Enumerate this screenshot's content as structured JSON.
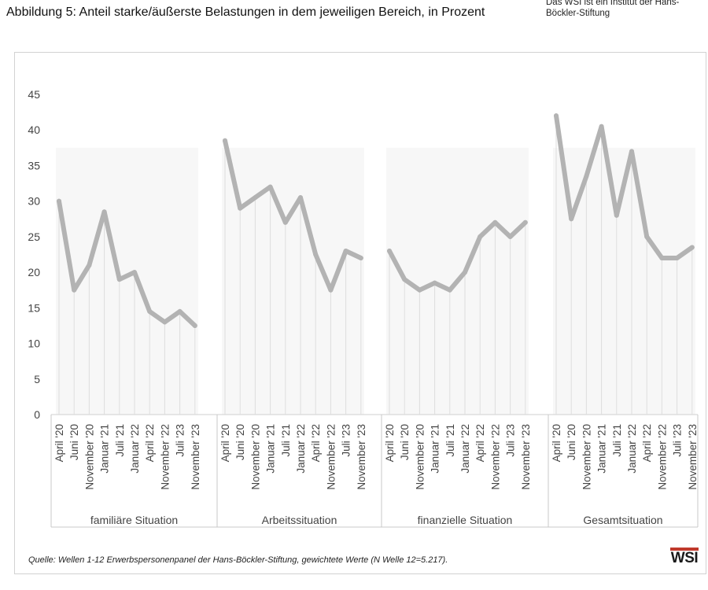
{
  "title": "Abbildung 5: Anteil starke/äußerste Belastungen in dem jeweiligen Bereich, in Prozent",
  "org_note": "Das WSI ist ein Institut der Hans-Böckler-Stiftung",
  "source": "Quelle: Wellen 1-12 Erwerbspersonenpanel der Hans-Böckler-Stiftung, gewichtete Werte (N Welle 12=5.217).",
  "logo_text": "WSI",
  "colors": {
    "line": "#b3b3b3",
    "drop_line": "#dedede",
    "axis_text": "#444444",
    "background": "#ffffff"
  },
  "chart_data": {
    "type": "line",
    "title": "Abbildung 5: Anteil starke/äußerste Belastungen in dem jeweiligen Bereich, in Prozent",
    "xlabel": "",
    "ylabel": "",
    "ylim": [
      0,
      45
    ],
    "yticks": [
      0,
      5,
      10,
      15,
      20,
      25,
      30,
      35,
      40,
      45
    ],
    "grid": false,
    "legend": "none",
    "categories": [
      "April '20",
      "Juni '20",
      "November '20",
      "Januar '21",
      "Juli '21",
      "Januar '22",
      "April '22",
      "November '22",
      "Juli '23",
      "November '23"
    ],
    "groups": [
      {
        "label": "familiäre Situation",
        "values": [
          30,
          17.5,
          21,
          28.5,
          19,
          20,
          14.5,
          13,
          14.5,
          12.5
        ]
      },
      {
        "label": "Arbeitssituation",
        "values": [
          38.5,
          29,
          30.5,
          32,
          27,
          30.5,
          22.5,
          17.5,
          23,
          22
        ]
      },
      {
        "label": "finanzielle Situation",
        "values": [
          23,
          19,
          17.5,
          18.5,
          17.5,
          20,
          25,
          27,
          25,
          27
        ]
      },
      {
        "label": "Gesamtsituation",
        "values": [
          42,
          27.5,
          33.5,
          40.5,
          28,
          37,
          25,
          22,
          22,
          23.5
        ]
      }
    ]
  }
}
